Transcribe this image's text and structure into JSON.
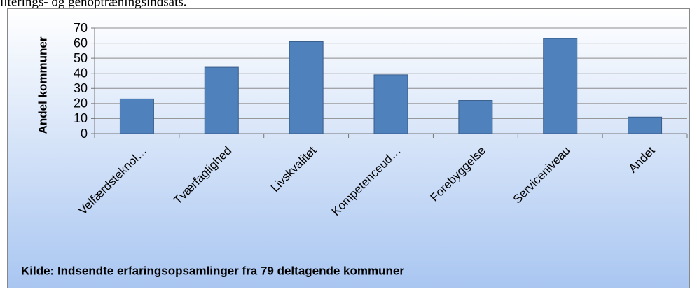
{
  "page_text": "ilterings- og genoptræningsindsats.",
  "chart_data": {
    "type": "bar",
    "y_label": "Andel kommuner",
    "source": "Kilde: Indsendte erfaringsopsamlinger fra 79 deltagende kommuner",
    "categories": [
      "Velfærdsteknol…",
      "Tværfaglighed",
      "Livskvalitet",
      "Kompetenceud…",
      "Forebyggelse",
      "Serviceniveau",
      "Andet"
    ],
    "values": [
      23,
      44,
      61,
      39,
      22,
      63,
      11
    ],
    "color": "#4f81bd",
    "ylim": [
      0,
      70
    ],
    "yticks": [
      0,
      10,
      20,
      30,
      40,
      50,
      60,
      70
    ],
    "grid": true
  }
}
